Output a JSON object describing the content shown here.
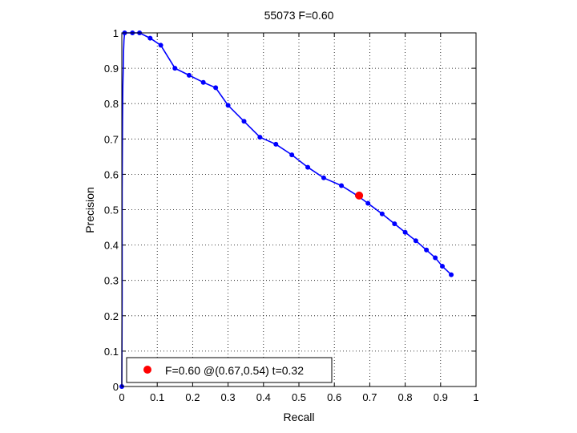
{
  "chart_data": {
    "type": "line",
    "title": "55073 F=0.60",
    "xlabel": "Recall",
    "ylabel": "Precision",
    "xlim": [
      0,
      1
    ],
    "ylim": [
      0,
      1
    ],
    "grid": true,
    "xticks": [
      "0",
      "0.1",
      "0.2",
      "0.3",
      "0.4",
      "0.5",
      "0.6",
      "0.7",
      "0.8",
      "0.9",
      "1"
    ],
    "yticks": [
      "0",
      "0.1",
      "0.2",
      "0.3",
      "0.4",
      "0.5",
      "0.6",
      "0.7",
      "0.8",
      "0.9",
      "1"
    ],
    "series_color": "#0000ff",
    "marker_color": "#ff0000",
    "series": [
      {
        "x": [
          0,
          0.001,
          0.001,
          0.002,
          0.003,
          0.004,
          0.005,
          0.006,
          0.008,
          0.03,
          0.05,
          0.08,
          0.11,
          0.15,
          0.19,
          0.23,
          0.265,
          0.3,
          0.345,
          0.39,
          0.435,
          0.48,
          0.525,
          0.57,
          0.62,
          0.665,
          0.695,
          0.735,
          0.77,
          0.8,
          0.83,
          0.86,
          0.885,
          0.905,
          0.93
        ],
        "y": [
          0,
          0.25,
          0.55,
          0.75,
          0.85,
          0.9,
          0.95,
          0.98,
          1.0,
          1.0,
          1.0,
          0.985,
          0.965,
          0.9,
          0.88,
          0.86,
          0.845,
          0.795,
          0.75,
          0.705,
          0.685,
          0.655,
          0.62,
          0.59,
          0.568,
          0.54,
          0.518,
          0.488,
          0.46,
          0.436,
          0.412,
          0.386,
          0.364,
          0.34,
          0.316
        ],
        "markers_from_index": 8
      }
    ],
    "best_point": {
      "x": 0.67,
      "y": 0.54
    },
    "legend": {
      "label": "F=0.60 @(0.67,0.54) t=0.32",
      "placement": "bottom-left"
    }
  }
}
